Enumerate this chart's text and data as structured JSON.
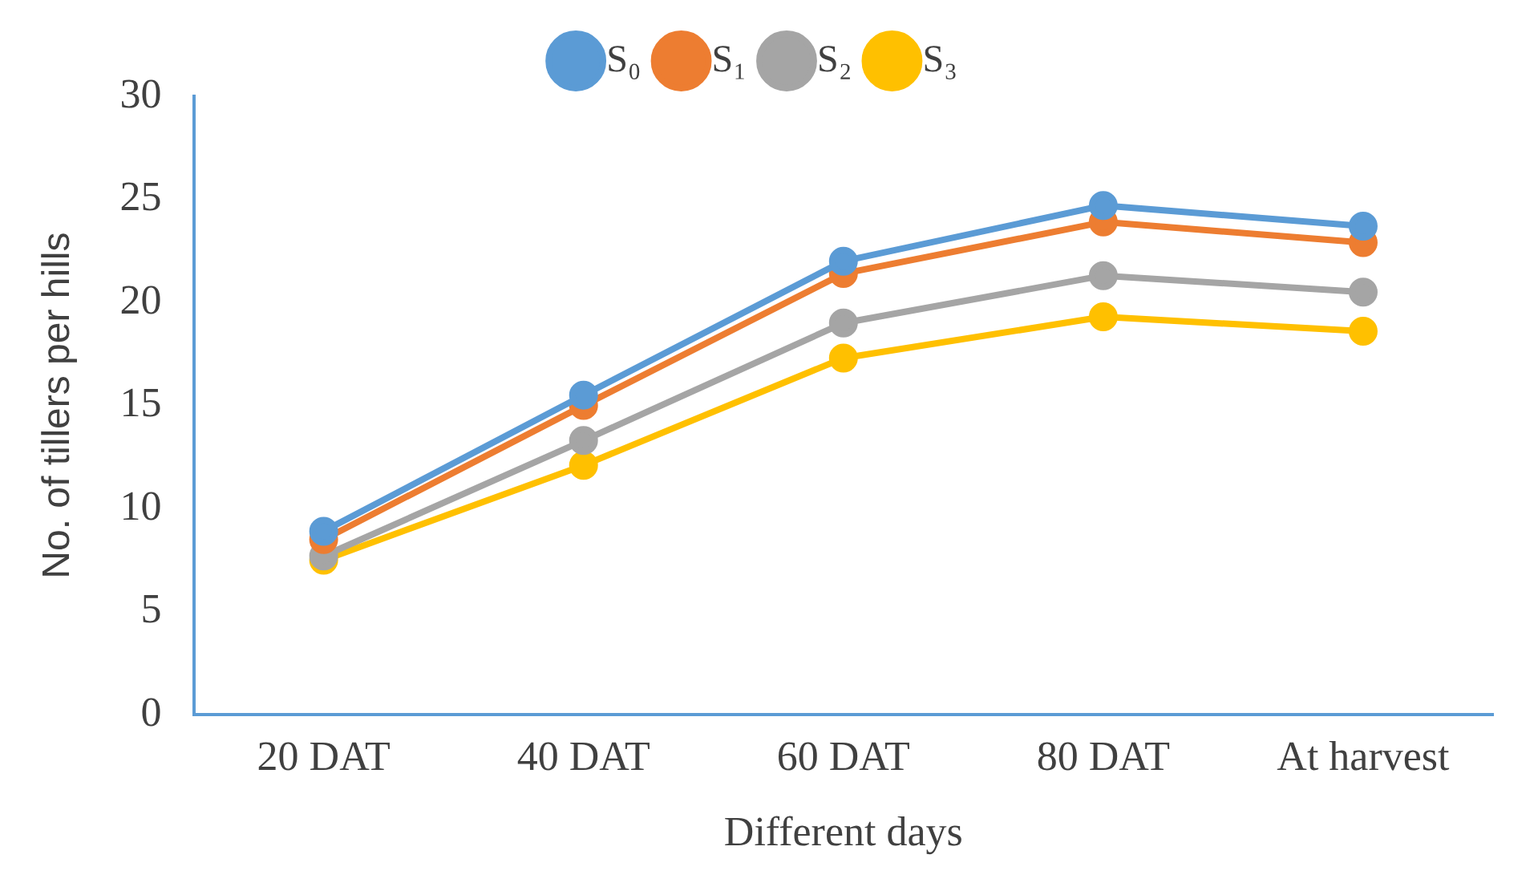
{
  "chart_data": {
    "type": "line",
    "xlabel": "Different days",
    "ylabel": "No. of tillers per hills",
    "categories": [
      "20 DAT",
      "40 DAT",
      "60 DAT",
      "80 DAT",
      "At harvest"
    ],
    "series": [
      {
        "name": "S₀",
        "color": "#5b9bd5",
        "values": [
          8.9,
          15.5,
          22.0,
          24.7,
          23.7
        ]
      },
      {
        "name": "S₁",
        "color": "#ed7d31",
        "values": [
          8.5,
          15.0,
          21.4,
          23.9,
          22.9
        ]
      },
      {
        "name": "S₂",
        "color": "#a5a5a5",
        "values": [
          7.7,
          13.3,
          19.0,
          21.3,
          20.5
        ]
      },
      {
        "name": "S₃",
        "color": "#ffc000",
        "values": [
          7.5,
          12.1,
          17.3,
          19.3,
          18.6
        ]
      }
    ],
    "ylim": [
      0,
      30
    ],
    "yticks": [
      0,
      5,
      10,
      15,
      20,
      25,
      30
    ],
    "grid": false,
    "legend": "top",
    "marker": "circle",
    "line_style": "solid"
  }
}
